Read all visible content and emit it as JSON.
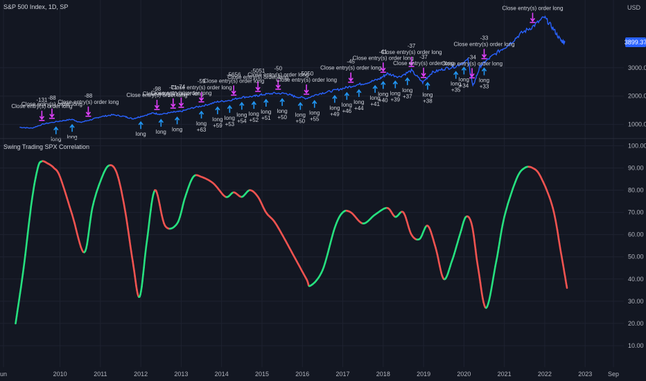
{
  "chart_data": [
    {
      "type": "line",
      "title": "S&P 500 Index, 1D, SP",
      "unit_label": "USD",
      "last_value_badge": "3899.37",
      "y_ticks": [
        "3000.00",
        "2000.00",
        "1000.00"
      ],
      "ylim": [
        600,
        4900
      ],
      "color": "#2962ff",
      "series": [
        {
          "x": [
            2009.0,
            2009.3,
            2009.6,
            2010.0,
            2010.3,
            2010.5,
            2010.8,
            2011.0,
            2011.3,
            2011.6,
            2011.8,
            2012.0,
            2012.3,
            2012.5,
            2012.8,
            2013.0,
            2013.3,
            2013.6,
            2013.9,
            2014.2,
            2014.5,
            2014.8,
            2015.0,
            2015.3,
            2015.6,
            2015.8,
            2016.1,
            2016.4,
            2016.7,
            2017.0,
            2017.3,
            2017.6,
            2017.9,
            2018.1,
            2018.4,
            2018.7,
            2018.98,
            2019.2,
            2019.5,
            2019.8,
            2020.1,
            2020.22,
            2020.4,
            2020.6,
            2020.9,
            2021.1,
            2021.4,
            2021.7,
            2021.99,
            2022.2,
            2022.4,
            2022.5
          ],
          "values": [
            900,
            870,
            1020,
            1120,
            1180,
            1070,
            1180,
            1270,
            1340,
            1280,
            1200,
            1280,
            1400,
            1360,
            1430,
            1460,
            1590,
            1680,
            1800,
            1850,
            1960,
            1990,
            2050,
            2100,
            2090,
            1990,
            1920,
            2080,
            2170,
            2270,
            2380,
            2470,
            2600,
            2790,
            2680,
            2900,
            2480,
            2820,
            2960,
            3050,
            3280,
            2340,
            3050,
            3300,
            3620,
            3800,
            4200,
            4450,
            4780,
            4400,
            3950,
            3899
          ]
        }
      ],
      "signals": [
        {
          "x": 2009.55,
          "type": "exit",
          "label": "Close entry(s) order long",
          "pnl": "-131"
        },
        {
          "x": 2009.8,
          "type": "exit",
          "label": "Close entry(s) order long",
          "pnl": "-88"
        },
        {
          "x": 2010.7,
          "type": "exit",
          "label": "Close entry(s) order long",
          "pnl": "-88"
        },
        {
          "x": 2012.4,
          "type": "exit",
          "label": "Close entry(s) order long",
          "pnl": "-98"
        },
        {
          "x": 2012.8,
          "type": "exit",
          "label": "Close entry(s) order long",
          "pnl": "-71"
        },
        {
          "x": 2013.0,
          "type": "exit",
          "label": "Close entry(s) order long",
          "pnl": "-74"
        },
        {
          "x": 2013.5,
          "type": "exit",
          "label": "Close entry(s) order long",
          "pnl": "-59"
        },
        {
          "x": 2014.3,
          "type": "exit",
          "label": "Close entry(s) order long",
          "pnl": "-5656"
        },
        {
          "x": 2014.9,
          "type": "exit",
          "label": "Close entry(s) order long",
          "pnl": "-5051"
        },
        {
          "x": 2015.4,
          "type": "exit",
          "label": "Close entry(s) order long",
          "pnl": "-50"
        },
        {
          "x": 2016.1,
          "type": "exit",
          "label": "Close entry(s) order long",
          "pnl": "-5050"
        },
        {
          "x": 2017.2,
          "type": "exit",
          "label": "Close entry(s) order long",
          "pnl": "-45"
        },
        {
          "x": 2018.0,
          "type": "exit",
          "label": "Close entry(s) order long",
          "pnl": "-41"
        },
        {
          "x": 2018.7,
          "type": "exit",
          "label": "Close entry(s) order long",
          "pnl": "-37"
        },
        {
          "x": 2019.0,
          "type": "exit",
          "label": "Close entry(s) order long",
          "pnl": "-37"
        },
        {
          "x": 2020.2,
          "type": "exit",
          "label": "Close entry(s) order long",
          "pnl": "-34"
        },
        {
          "x": 2020.5,
          "type": "exit",
          "label": "Close entry(s) order long",
          "pnl": "-33"
        },
        {
          "x": 2021.7,
          "type": "exit",
          "label": "Close entry(s) order long",
          "pnl": ""
        },
        {
          "x": 2009.9,
          "type": "entry",
          "label": "long",
          "pnl": ""
        },
        {
          "x": 2010.3,
          "type": "entry",
          "label": "long",
          "pnl": ""
        },
        {
          "x": 2012.0,
          "type": "entry",
          "label": "long",
          "pnl": ""
        },
        {
          "x": 2012.5,
          "type": "entry",
          "label": "long",
          "pnl": ""
        },
        {
          "x": 2012.9,
          "type": "entry",
          "label": "long",
          "pnl": ""
        },
        {
          "x": 2013.5,
          "type": "entry",
          "label": "long",
          "pnl": "+63"
        },
        {
          "x": 2013.9,
          "type": "entry",
          "label": "long",
          "pnl": "+59"
        },
        {
          "x": 2014.2,
          "type": "entry",
          "label": "long",
          "pnl": "+53"
        },
        {
          "x": 2014.5,
          "type": "entry",
          "label": "long",
          "pnl": "+54"
        },
        {
          "x": 2014.8,
          "type": "entry",
          "label": "long",
          "pnl": "+52"
        },
        {
          "x": 2015.1,
          "type": "entry",
          "label": "long",
          "pnl": "+51"
        },
        {
          "x": 2015.5,
          "type": "entry",
          "label": "long",
          "pnl": "+50"
        },
        {
          "x": 2015.95,
          "type": "entry",
          "label": "long",
          "pnl": "+50"
        },
        {
          "x": 2016.3,
          "type": "entry",
          "label": "long",
          "pnl": "+55"
        },
        {
          "x": 2016.8,
          "type": "entry",
          "label": "long",
          "pnl": "+49"
        },
        {
          "x": 2017.1,
          "type": "entry",
          "label": "long",
          "pnl": "+46"
        },
        {
          "x": 2017.4,
          "type": "entry",
          "label": "long",
          "pnl": "+44"
        },
        {
          "x": 2017.8,
          "type": "entry",
          "label": "long",
          "pnl": "+41"
        },
        {
          "x": 2018.0,
          "type": "entry",
          "label": "long",
          "pnl": "+40"
        },
        {
          "x": 2018.3,
          "type": "entry",
          "label": "long",
          "pnl": "+39"
        },
        {
          "x": 2018.6,
          "type": "entry",
          "label": "long",
          "pnl": "+37"
        },
        {
          "x": 2019.1,
          "type": "entry",
          "label": "long",
          "pnl": "+38"
        },
        {
          "x": 2019.8,
          "type": "entry",
          "label": "long",
          "pnl": "+35"
        },
        {
          "x": 2020.0,
          "type": "entry",
          "label": "long",
          "pnl": "+34"
        },
        {
          "x": 2020.5,
          "type": "entry",
          "label": "long",
          "pnl": "+33"
        }
      ]
    },
    {
      "type": "line",
      "title": "Swing Trading SPX Correlation",
      "y_ticks": [
        "100.00",
        "90.00",
        "80.00",
        "70.00",
        "60.00",
        "50.00",
        "40.00",
        "30.00",
        "20.00",
        "10.00"
      ],
      "ylim": [
        5,
        102
      ],
      "up_color": "#26e07f",
      "down_color": "#ef5350",
      "series": [
        {
          "x": [
            2008.9,
            2009.1,
            2009.3,
            2009.45,
            2009.55,
            2009.7,
            2009.85,
            2010.0,
            2010.3,
            2010.6,
            2010.8,
            2011.0,
            2011.2,
            2011.4,
            2011.6,
            2011.8,
            2011.97,
            2012.15,
            2012.35,
            2012.6,
            2012.9,
            2013.1,
            2013.3,
            2013.5,
            2013.8,
            2014.1,
            2014.3,
            2014.5,
            2014.7,
            2014.9,
            2015.1,
            2015.3,
            2015.5,
            2015.8,
            2016.1,
            2016.2,
            2016.5,
            2016.8,
            2017.0,
            2017.2,
            2017.5,
            2017.8,
            2018.1,
            2018.3,
            2018.5,
            2018.7,
            2018.9,
            2019.1,
            2019.3,
            2019.5,
            2019.7,
            2019.9,
            2020.05,
            2020.2,
            2020.35,
            2020.55,
            2020.8,
            2021.0,
            2021.3,
            2021.5,
            2021.7,
            2021.9,
            2022.2,
            2022.4,
            2022.55
          ],
          "values": [
            20,
            45,
            75,
            90,
            93,
            92,
            90,
            86,
            69,
            52,
            72,
            84,
            91,
            88,
            72,
            48,
            32,
            57,
            80,
            64,
            65,
            77,
            86,
            86,
            83,
            77,
            79,
            77,
            80,
            77,
            70,
            66,
            60,
            50,
            40,
            37,
            44,
            63,
            70,
            70,
            65,
            69,
            72,
            68,
            70,
            60,
            58,
            64,
            54,
            40,
            48,
            60,
            68,
            64,
            45,
            27,
            48,
            68,
            85,
            90,
            90,
            86,
            72,
            52,
            36
          ]
        }
      ]
    }
  ],
  "x_axis": {
    "ticks": [
      {
        "x": 2008.6,
        "label": "un"
      },
      {
        "x": 2010.0,
        "label": "2010"
      },
      {
        "x": 2011.0,
        "label": "2011"
      },
      {
        "x": 2012.0,
        "label": "2012"
      },
      {
        "x": 2013.0,
        "label": "2013"
      },
      {
        "x": 2014.0,
        "label": "2014"
      },
      {
        "x": 2015.0,
        "label": "2015"
      },
      {
        "x": 2016.0,
        "label": "2016"
      },
      {
        "x": 2017.0,
        "label": "2017"
      },
      {
        "x": 2018.0,
        "label": "2018"
      },
      {
        "x": 2019.0,
        "label": "2019"
      },
      {
        "x": 2020.0,
        "label": "2020"
      },
      {
        "x": 2021.0,
        "label": "2021"
      },
      {
        "x": 2022.0,
        "label": "2022"
      },
      {
        "x": 2023.0,
        "label": "2023"
      },
      {
        "x": 2023.7,
        "label": "Sep"
      }
    ]
  },
  "colors": {
    "background": "#131722",
    "grid": "#1e2230",
    "exit_arrow": "#e040fb",
    "entry_arrow": "#2196f3"
  }
}
